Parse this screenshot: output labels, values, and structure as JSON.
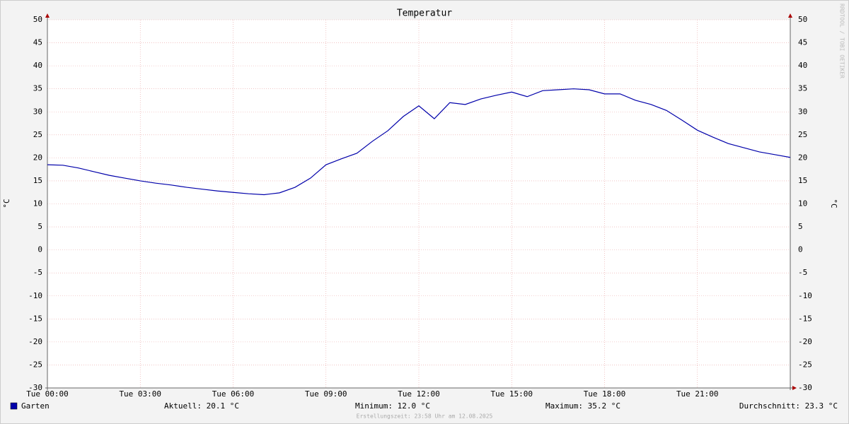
{
  "chart_data": {
    "type": "line",
    "title": "Temperatur",
    "y_label": "°C",
    "x": [
      0,
      0.5,
      1,
      1.5,
      2,
      2.5,
      3,
      3.5,
      4,
      4.5,
      5,
      5.5,
      6,
      6.5,
      7,
      7.5,
      8,
      8.5,
      9,
      9.5,
      10,
      10.5,
      11,
      11.5,
      12,
      12.5,
      13,
      13.5,
      14,
      14.5,
      15,
      15.5,
      16,
      16.5,
      17,
      17.5,
      18,
      18.5,
      19,
      19.5,
      20,
      20.5,
      21,
      21.5,
      22,
      22.5,
      23,
      23.5,
      24
    ],
    "series": [
      {
        "name": "Garten",
        "color": "#0000aa",
        "values": [
          18.5,
          18.4,
          17.8,
          17.0,
          16.2,
          15.6,
          15.0,
          14.5,
          14.1,
          13.6,
          13.2,
          12.8,
          12.5,
          12.2,
          12.0,
          12.4,
          13.6,
          15.6,
          18.5,
          19.8,
          21.0,
          23.6,
          25.9,
          29.0,
          31.3,
          28.5,
          32.0,
          31.6,
          32.8,
          33.6,
          34.3,
          33.3,
          34.6,
          34.8,
          35.0,
          34.8,
          33.9,
          33.9,
          32.5,
          31.6,
          30.3,
          28.2,
          26.0,
          24.5,
          23.1,
          22.2,
          21.3,
          20.7,
          20.1
        ]
      }
    ],
    "xlim": [
      0,
      24
    ],
    "xticks": [
      {
        "value": 0,
        "label": "Tue 00:00"
      },
      {
        "value": 3,
        "label": "Tue 03:00"
      },
      {
        "value": 6,
        "label": "Tue 06:00"
      },
      {
        "value": 9,
        "label": "Tue 09:00"
      },
      {
        "value": 12,
        "label": "Tue 12:00"
      },
      {
        "value": 15,
        "label": "Tue 15:00"
      },
      {
        "value": 18,
        "label": "Tue 18:00"
      },
      {
        "value": 21,
        "label": "Tue 21:00"
      }
    ],
    "ylim": [
      -30,
      50
    ],
    "yticks": [
      -30,
      -25,
      -20,
      -15,
      -10,
      -5,
      0,
      5,
      10,
      15,
      20,
      25,
      30,
      35,
      40,
      45,
      50
    ],
    "grid": true,
    "stats": [
      "Aktuell: 20.1 °C",
      "Minimum: 12.0 °C",
      "Maximum: 35.2 °C",
      "Durchschnitt: 23.3 °C"
    ],
    "footer": "Erstellungszeit: 23:58 Uhr am 12.08.2025",
    "watermark": "RRDTOOL / TOBI OETIKER"
  }
}
